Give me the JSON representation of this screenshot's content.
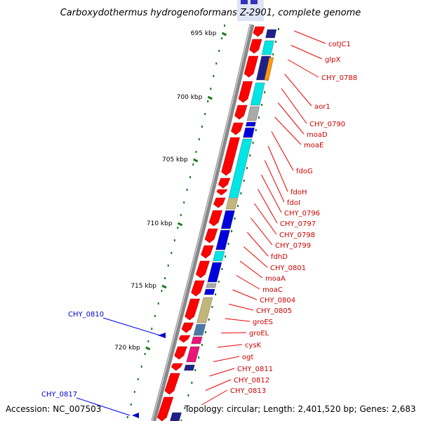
{
  "title": "Carboxydothermus hydrogenoformans Z-2901, complete genome",
  "footer": {
    "accession": "Accession: NC_007503",
    "topology": "Topology: circular; Length: 2,401,520 bp; Genes: 2,683"
  },
  "colors": {
    "red": "#ff0000",
    "cyan": "#00e5e5",
    "blue": "#0000dd",
    "navy": "#20208a",
    "khaki": "#c2b77a",
    "slate": "#4c78a8",
    "magenta": "#e8157a",
    "orange": "#ff9900",
    "gray": "#aaaaaa",
    "label_red": "#cc0000",
    "label_blue": "#0000cc",
    "tick_green": "#1a7a1a",
    "backbone": "#888888"
  },
  "scale_ticks": [
    {
      "label": "695 kbp"
    },
    {
      "label": "700 kbp"
    },
    {
      "label": "705 kbp"
    },
    {
      "label": "710 kbp"
    },
    {
      "label": "715 kbp"
    },
    {
      "label": "720 kbp"
    }
  ],
  "right_labels": [
    "cotJC1",
    "glpX",
    "CHY_0788",
    "aor1",
    "CHY_0790",
    "moaD",
    "moaE",
    "fdoG",
    "fdoH",
    "fdoI",
    "CHY_0796",
    "CHY_0797",
    "CHY_0798",
    "CHY_0799",
    "fdhD",
    "CHY_0801",
    "moaA",
    "moaC",
    "CHY_0804",
    "CHY_0805",
    "groES",
    "groEL",
    "cysK",
    "ogt",
    "CHY_0811",
    "CHY_0812",
    "CHY_0813"
  ],
  "left_labels": [
    "CHY_0810",
    "CHY_0817"
  ]
}
